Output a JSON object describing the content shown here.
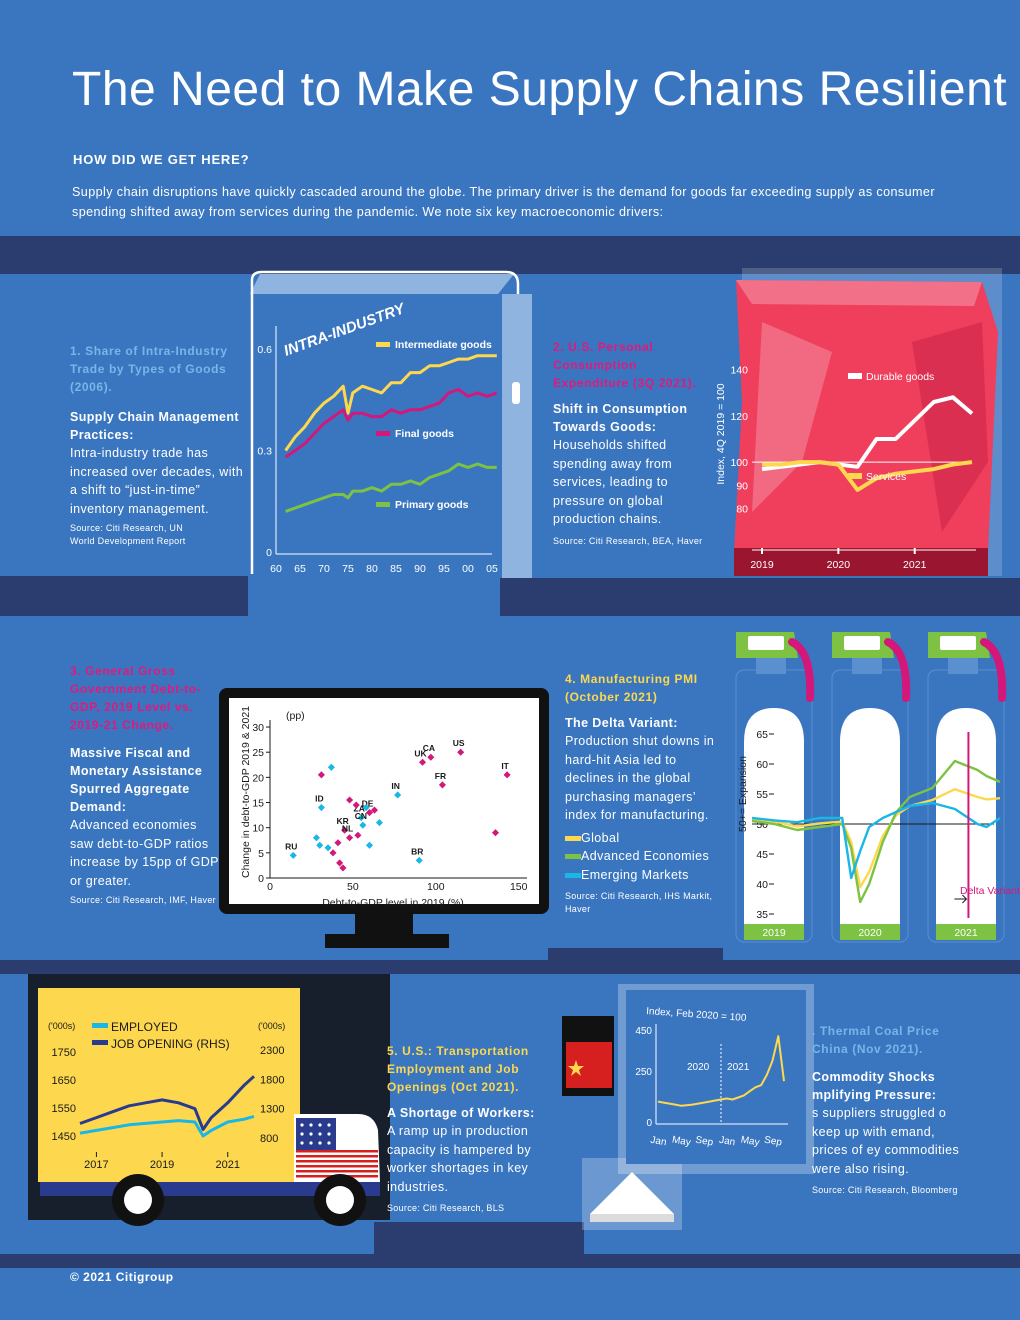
{
  "title": "The Need to Make Supply Chains Resilient",
  "kicker": "HOW DID WE GET HERE?",
  "intro": "Supply chain disruptions have quickly cascaded around the globe. The primary driver is the demand for goods far exceeding supply as consumer spending shifted away from services during the pandemic. We note six key macroeconomic drivers:",
  "sections": {
    "s1": {
      "heading": "1. Share of Intra-Industry Trade by Types of Goods (2006).",
      "subheading": "Supply Chain Management Practices:",
      "body": "Intra-industry trade has increased over decades, with a shift to “just-in-time” inventory management.",
      "source": "Source: Citi Research, UN World Development Report"
    },
    "s2": {
      "heading": "2. U.S. Personal Consumption Expenditure (3Q 2021).",
      "subheading": "Shift in Consumption Towards Goods:",
      "body": "Households shifted spending away from services, leading to pressure on global production chains.",
      "source": "Source: Citi Research, BEA, Haver"
    },
    "s3": {
      "heading": "3. General Gross Government Debt-to-GDP, 2019 Level vs. 2019-21 Change.",
      "subheading": "Massive Fiscal and Monetary Assistance Spurred Aggregate Demand:",
      "body": "Advanced economies saw debt-to-GDP ratios increase by 15pp of GDP or greater.",
      "source": "Source: Citi Research, IMF, Haver"
    },
    "s4": {
      "heading": "4. Manufacturing PMI (October 2021)",
      "subheading": "The Delta Variant:",
      "body": "Production shut downs in hard-hit Asia led to declines in the global purchasing managers’ index for manufacturing.",
      "legend": [
        "Global",
        "Advanced Economies",
        "Emerging Markets"
      ],
      "source": "Source: Citi Research, IHS Markit, Haver"
    },
    "s5": {
      "heading": "5. U.S.: Transportation Employment and Job Openings (Oct 2021).",
      "subheading": "A Shortage of Workers:",
      "body": "A ramp up in production capacity is hampered by worker shortages in key industries.",
      "source": "Source: Citi Research, BLS"
    },
    "s6": {
      "heading": ". Thermal Coal Price China (Nov 2021).",
      "subheading": "Commodity Shocks mplifying Pressure:",
      "body": "s suppliers struggled o keep up with emand, prices of ey commodities were also rising.",
      "source": "Source: Citi Research, Bloomberg"
    }
  },
  "footer": "© 2021 Citigroup",
  "colors": {
    "background": "#3a76c0",
    "band": "#2b3d6e",
    "yellow": "#fdd84e",
    "magenta": "#d4177a",
    "green": "#7dc242",
    "cyan": "#19b6e6",
    "navy": "#2a3a8c",
    "lightblue": "#76b6e8"
  },
  "chart_data": [
    {
      "id": "intra_industry",
      "type": "line",
      "title": "INTRA-INDUSTRY",
      "x_ticks": [
        "60",
        "65",
        "70",
        "75",
        "80",
        "85",
        "90",
        "95",
        "00",
        "05"
      ],
      "y_ticks": [
        "0",
        "0.3",
        "0.6"
      ],
      "ylim": [
        0,
        0.65
      ],
      "x": [
        1962,
        1964,
        1966,
        1968,
        1970,
        1972,
        1974,
        1975,
        1976,
        1978,
        1980,
        1982,
        1984,
        1986,
        1988,
        1990,
        1992,
        1994,
        1996,
        1998,
        2000,
        2002,
        2004,
        2006
      ],
      "series": [
        {
          "name": "Intermediate goods",
          "color": "#fdd84e",
          "values": [
            0.3,
            0.34,
            0.37,
            0.41,
            0.44,
            0.46,
            0.49,
            0.41,
            0.47,
            0.49,
            0.48,
            0.47,
            0.5,
            0.5,
            0.53,
            0.53,
            0.55,
            0.55,
            0.56,
            0.57,
            0.57,
            0.58,
            0.58,
            0.58
          ]
        },
        {
          "name": "Final goods",
          "color": "#d4177a",
          "values": [
            0.28,
            0.3,
            0.32,
            0.35,
            0.38,
            0.4,
            0.42,
            0.39,
            0.41,
            0.41,
            0.4,
            0.4,
            0.42,
            0.41,
            0.42,
            0.42,
            0.43,
            0.44,
            0.47,
            0.48,
            0.46,
            0.47,
            0.46,
            0.47
          ]
        },
        {
          "name": "Primary goods",
          "color": "#7dc242",
          "values": [
            0.12,
            0.13,
            0.14,
            0.15,
            0.16,
            0.17,
            0.17,
            0.16,
            0.18,
            0.18,
            0.19,
            0.18,
            0.2,
            0.2,
            0.21,
            0.2,
            0.22,
            0.23,
            0.24,
            0.26,
            0.25,
            0.26,
            0.25,
            0.25
          ]
        }
      ]
    },
    {
      "id": "pce",
      "type": "line",
      "ylabel": "Index, 4Q 2019 = 100",
      "x_ticks": [
        "2019",
        "2020",
        "2021"
      ],
      "y_ticks": [
        "80",
        "90",
        "100",
        "120",
        "140"
      ],
      "ylim": [
        75,
        145
      ],
      "x": [
        2019.0,
        2019.25,
        2019.5,
        2019.75,
        2020.0,
        2020.25,
        2020.5,
        2020.75,
        2021.0,
        2021.25,
        2021.5,
        2021.75
      ],
      "series": [
        {
          "name": "Durable goods",
          "color": "#ffffff",
          "values": [
            97,
            98,
            99,
            100,
            99,
            98,
            110,
            110,
            118,
            126,
            128,
            121
          ]
        },
        {
          "name": "Services",
          "color": "#fdd84e",
          "values": [
            99,
            99,
            100,
            100,
            99,
            88,
            93,
            95,
            96,
            97,
            99,
            100
          ]
        }
      ]
    },
    {
      "id": "debt",
      "type": "scatter",
      "xlabel": "Debt-to-GDP level in 2019 (%)",
      "ylabel": "Change in debt-to-GDP 2019 & 2021",
      "unit_label": "(pp)",
      "x_ticks": [
        "0",
        "50",
        "100",
        "150"
      ],
      "y_ticks": [
        "0",
        "5",
        "10",
        "15",
        "20",
        "25",
        "30"
      ],
      "xlim": [
        0,
        155
      ],
      "ylim": [
        0,
        31
      ],
      "points": [
        {
          "label": "US",
          "x": 115,
          "y": 25,
          "group": "advanced"
        },
        {
          "label": "CA",
          "x": 97,
          "y": 24,
          "group": "advanced"
        },
        {
          "label": "UK",
          "x": 92,
          "y": 23,
          "group": "advanced"
        },
        {
          "label": "IT",
          "x": 143,
          "y": 20.5,
          "group": "advanced"
        },
        {
          "label": "FR",
          "x": 104,
          "y": 18.5,
          "group": "advanced"
        },
        {
          "label": "DE",
          "x": 60,
          "y": 13,
          "group": "advanced"
        },
        {
          "label": "ZA",
          "x": 55,
          "y": 12,
          "group": "emerging"
        },
        {
          "label": "IN",
          "x": 77,
          "y": 16.5,
          "group": "emerging"
        },
        {
          "label": "ID",
          "x": 31,
          "y": 14,
          "group": "emerging"
        },
        {
          "label": "KR",
          "x": 45,
          "y": 9.5,
          "group": "advanced"
        },
        {
          "label": "CN",
          "x": 56,
          "y": 10.5,
          "group": "emerging"
        },
        {
          "label": "NL",
          "x": 48,
          "y": 8,
          "group": "advanced"
        },
        {
          "label": "RU",
          "x": 14,
          "y": 4.5,
          "group": "emerging"
        },
        {
          "label": "BR",
          "x": 90,
          "y": 3.5,
          "group": "emerging"
        },
        {
          "label": "",
          "x": 31,
          "y": 20.5,
          "group": "advanced"
        },
        {
          "label": "",
          "x": 37,
          "y": 22,
          "group": "emerging"
        },
        {
          "label": "",
          "x": 48,
          "y": 15.5,
          "group": "advanced"
        },
        {
          "label": "",
          "x": 52,
          "y": 14.5,
          "group": "advanced"
        },
        {
          "label": "",
          "x": 58,
          "y": 14,
          "group": "emerging"
        },
        {
          "label": "",
          "x": 63,
          "y": 13.5,
          "group": "advanced"
        },
        {
          "label": "",
          "x": 66,
          "y": 11,
          "group": "emerging"
        },
        {
          "label": "",
          "x": 41,
          "y": 7,
          "group": "advanced"
        },
        {
          "label": "",
          "x": 38,
          "y": 5,
          "group": "advanced"
        },
        {
          "label": "",
          "x": 28,
          "y": 8,
          "group": "emerging"
        },
        {
          "label": "",
          "x": 30,
          "y": 6.5,
          "group": "emerging"
        },
        {
          "label": "",
          "x": 35,
          "y": 6,
          "group": "emerging"
        },
        {
          "label": "",
          "x": 42,
          "y": 3,
          "group": "advanced"
        },
        {
          "label": "",
          "x": 44,
          "y": 2,
          "group": "advanced"
        },
        {
          "label": "",
          "x": 60,
          "y": 6.5,
          "group": "emerging"
        },
        {
          "label": "",
          "x": 136,
          "y": 9,
          "group": "advanced"
        },
        {
          "label": "",
          "x": 53,
          "y": 8.5,
          "group": "advanced"
        }
      ]
    },
    {
      "id": "pmi",
      "type": "line",
      "ylabel": "50+= Expansion",
      "annotation": "Delta Variant",
      "x_ticks": [
        "2019",
        "2020",
        "2021"
      ],
      "y_ticks": [
        "35",
        "40",
        "45",
        "50",
        "55",
        "60",
        "65"
      ],
      "ylim": [
        34,
        67
      ],
      "x": [
        2019.0,
        2019.25,
        2019.5,
        2019.75,
        2020.0,
        2020.1,
        2020.2,
        2020.3,
        2020.45,
        2020.6,
        2020.75,
        2021.0,
        2021.25,
        2021.5,
        2021.6,
        2021.75
      ],
      "series": [
        {
          "name": "Global",
          "color": "#fdd84e",
          "values": [
            50.8,
            50.4,
            49.6,
            50.1,
            50.4,
            47,
            39.5,
            42,
            48,
            51.5,
            53,
            54,
            55.8,
            54.5,
            54.1,
            54.3
          ]
        },
        {
          "name": "Advanced Economies",
          "color": "#7dc242",
          "values": [
            50.5,
            50,
            49,
            49.5,
            50,
            46,
            37,
            40,
            47,
            52,
            54.5,
            56,
            60.5,
            59,
            58,
            57
          ]
        },
        {
          "name": "Emerging Markets",
          "color": "#19b6e6",
          "values": [
            51,
            50.6,
            50.3,
            51,
            51,
            41,
            45.5,
            49.5,
            51,
            52,
            53,
            53.5,
            52.5,
            50,
            49.5,
            51
          ]
        }
      ]
    },
    {
      "id": "transport",
      "type": "line",
      "legend": [
        "EMPLOYED",
        "JOB OPENING (RHS)"
      ],
      "left_unit": "('000s)",
      "right_unit": "('000s)",
      "x_ticks": [
        "2017",
        "2019",
        "2021"
      ],
      "y_ticks_left": [
        "1450",
        "1550",
        "1650",
        "1750"
      ],
      "y_ticks_right": [
        "800",
        "1300",
        "1800",
        "2300"
      ],
      "ylim_left": [
        1400,
        1800
      ],
      "ylim_right": [
        600,
        2500
      ],
      "x": [
        2016.5,
        2017,
        2017.5,
        2018,
        2018.5,
        2019,
        2019.5,
        2020,
        2020.25,
        2020.5,
        2021,
        2021.5,
        2021.8
      ],
      "series": [
        {
          "name": "EMPLOYED",
          "axis": "left",
          "color": "#19b6e6",
          "values": [
            1460,
            1470,
            1480,
            1490,
            1495,
            1500,
            1505,
            1500,
            1450,
            1470,
            1500,
            1510,
            1520
          ]
        },
        {
          "name": "JOB OPENING (RHS)",
          "axis": "right",
          "color": "#2a3a8c",
          "values": [
            1050,
            1150,
            1250,
            1350,
            1400,
            1450,
            1400,
            1300,
            950,
            1150,
            1400,
            1700,
            1850
          ]
        }
      ]
    },
    {
      "id": "coal",
      "type": "line",
      "ylabel": "Index, Feb 2020 = 100",
      "x_ticks": [
        "Jan",
        "May",
        "Sep",
        "Jan",
        "May",
        "Sep"
      ],
      "year_labels": [
        "2020",
        "2021"
      ],
      "y_ticks": [
        "0",
        "250",
        "450"
      ],
      "ylim": [
        0,
        460
      ],
      "x": [
        0,
        1,
        2,
        3,
        4,
        5,
        6,
        7,
        8,
        9,
        10,
        11,
        12,
        13,
        14,
        15,
        16,
        17,
        18,
        19,
        20,
        21,
        22
      ],
      "series": [
        {
          "name": "Thermal coal",
          "color": "#fdd84e",
          "values": [
            100,
            95,
            90,
            85,
            80,
            82,
            85,
            90,
            95,
            100,
            105,
            110,
            115,
            110,
            120,
            130,
            150,
            170,
            180,
            230,
            300,
            420,
            200
          ]
        }
      ]
    }
  ]
}
